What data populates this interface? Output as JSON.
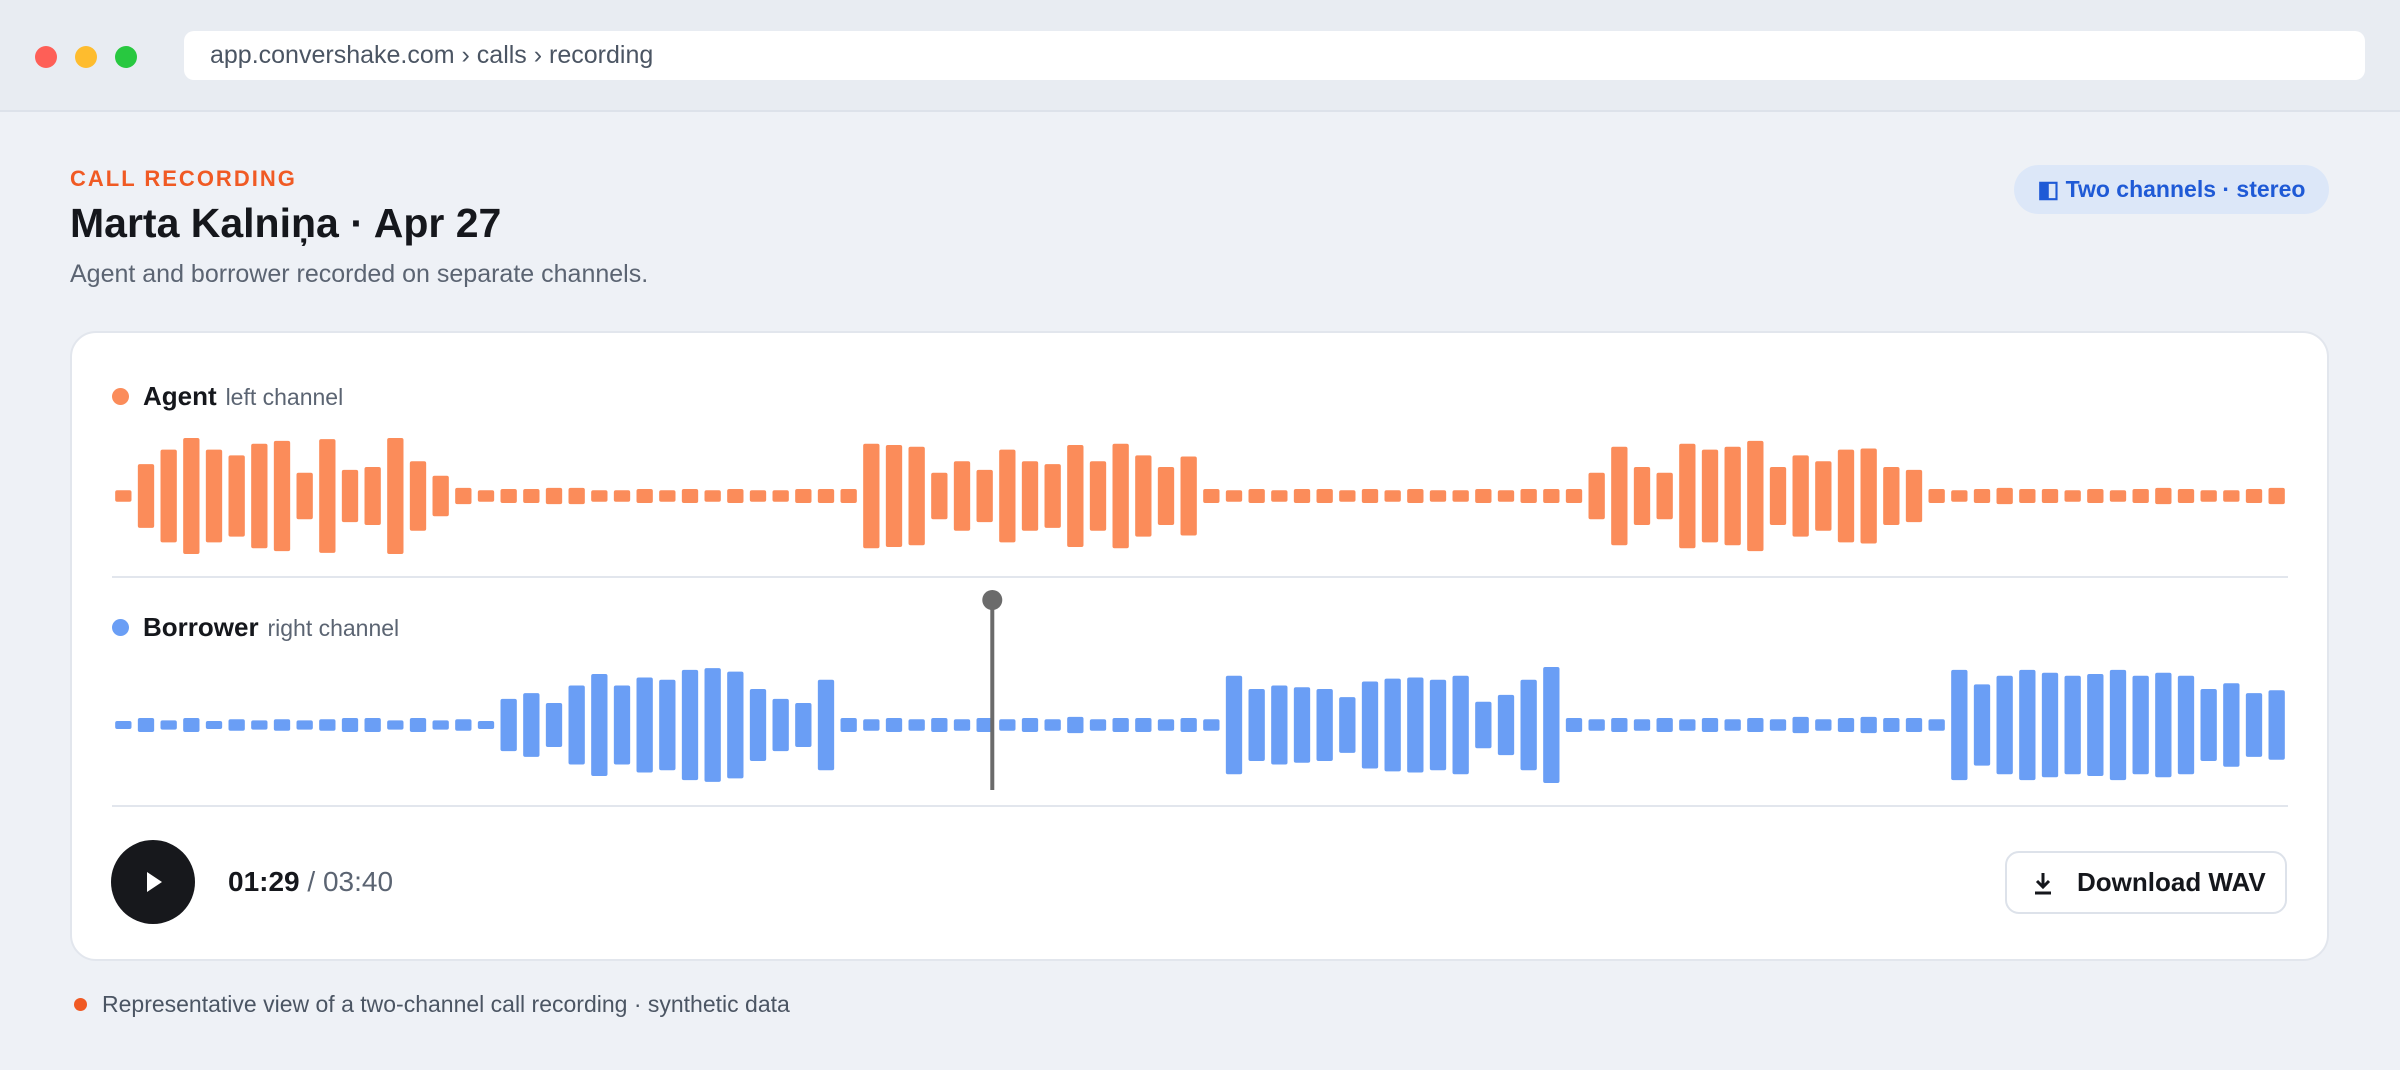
{
  "header": {
    "url": "app.convershake.com › calls › recording",
    "eyebrow": "CALL RECORDING",
    "title": "Marta Kalniņa · Apr 27",
    "subtitle": "Agent and borrower recorded on separate channels.",
    "badge": "◧ Two channels · stereo"
  },
  "channels": [
    {
      "name": "Agent",
      "sub": "left channel",
      "color": "#fb8c5a",
      "values": [
        0.1,
        0.55,
        0.8,
        1.0,
        0.8,
        0.7,
        0.9,
        0.95,
        0.4,
        0.98,
        0.45,
        0.5,
        1.0,
        0.6,
        0.35,
        0.14,
        0.1,
        0.12,
        0.12,
        0.14,
        0.14,
        0.1,
        0.1,
        0.12,
        0.1,
        0.12,
        0.1,
        0.12,
        0.1,
        0.1,
        0.12,
        0.12,
        0.12,
        0.9,
        0.88,
        0.85,
        0.4,
        0.6,
        0.45,
        0.8,
        0.6,
        0.55,
        0.88,
        0.6,
        0.9,
        0.7,
        0.5,
        0.68,
        0.12,
        0.1,
        0.12,
        0.1,
        0.12,
        0.12,
        0.1,
        0.12,
        0.1,
        0.12,
        0.1,
        0.1,
        0.12,
        0.1,
        0.12,
        0.12,
        0.12,
        0.4,
        0.85,
        0.5,
        0.4,
        0.9,
        0.8,
        0.85,
        0.95,
        0.5,
        0.7,
        0.6,
        0.8,
        0.82,
        0.5,
        0.45,
        0.12,
        0.1,
        0.12,
        0.14,
        0.12,
        0.12,
        0.1,
        0.12,
        0.1,
        0.12,
        0.14,
        0.12,
        0.1,
        0.1,
        0.12,
        0.14
      ]
    },
    {
      "name": "Borrower",
      "sub": "right channel",
      "color": "#6a9ef5",
      "values": [
        0.06,
        0.12,
        0.08,
        0.12,
        0.06,
        0.1,
        0.08,
        0.1,
        0.08,
        0.1,
        0.12,
        0.12,
        0.08,
        0.12,
        0.08,
        0.1,
        0.06,
        0.45,
        0.55,
        0.38,
        0.68,
        0.88,
        0.68,
        0.82,
        0.78,
        0.95,
        0.98,
        0.92,
        0.62,
        0.45,
        0.38,
        0.78,
        0.12,
        0.1,
        0.12,
        0.1,
        0.12,
        0.1,
        0.12,
        0.1,
        0.12,
        0.1,
        0.14,
        0.1,
        0.12,
        0.12,
        0.1,
        0.12,
        0.1,
        0.85,
        0.62,
        0.68,
        0.65,
        0.62,
        0.48,
        0.75,
        0.8,
        0.82,
        0.78,
        0.85,
        0.4,
        0.52,
        0.78,
        1.0,
        0.12,
        0.1,
        0.12,
        0.1,
        0.12,
        0.1,
        0.12,
        0.1,
        0.12,
        0.1,
        0.14,
        0.1,
        0.12,
        0.14,
        0.12,
        0.12,
        0.1,
        0.95,
        0.7,
        0.85,
        0.95,
        0.9,
        0.85,
        0.88,
        0.95,
        0.85,
        0.9,
        0.85,
        0.62,
        0.72,
        0.55,
        0.6
      ]
    }
  ],
  "player": {
    "current": "01:29",
    "separator": "/",
    "total": "03:40",
    "download": "Download WAV"
  },
  "footer": "Representative view of a two-channel call recording · synthetic data"
}
